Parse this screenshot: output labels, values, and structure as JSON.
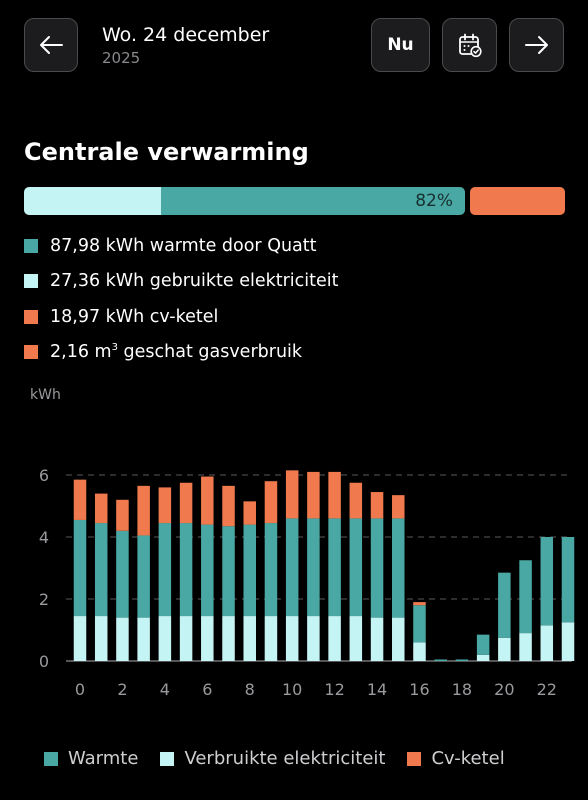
{
  "header": {
    "date": "Wo. 24 december",
    "year": "2025",
    "now_label": "Nu",
    "back_icon": "arrow-left-icon",
    "forward_icon": "arrow-right-icon",
    "calendar_icon": "calendar-check-icon"
  },
  "section": {
    "title": "Centrale verwarming",
    "percent_label": "82%"
  },
  "progress": {
    "electricity_fraction": 0.31,
    "heat_fraction": 0.69,
    "total_percent": 82
  },
  "legend": [
    {
      "text": "87,98 kWh warmte door Quatt",
      "color": "#4aa8a4"
    },
    {
      "text": "27,36 kWh gebruikte elektriciteit",
      "color": "#c5f4f4"
    },
    {
      "text": "18,97 kWh cv-ketel",
      "color": "#f07a4d"
    },
    {
      "pre": "2,16 m",
      "sup": "3",
      "post": " geschat gasverbruik",
      "color": "#f07a4d"
    }
  ],
  "colors": {
    "heat": "#4aa8a4",
    "electricity": "#c5f4f4",
    "boiler": "#f07a4d"
  },
  "chart_data": {
    "type": "bar",
    "stacked": true,
    "ylabel": "kWh",
    "ylim": [
      0,
      6.3
    ],
    "yticks": [
      0,
      2,
      4,
      6
    ],
    "xticks": [
      0,
      2,
      4,
      6,
      8,
      10,
      12,
      14,
      16,
      18,
      20,
      22
    ],
    "x": [
      0,
      1,
      2,
      3,
      4,
      5,
      6,
      7,
      8,
      9,
      10,
      11,
      12,
      13,
      14,
      15,
      16,
      17,
      18,
      19,
      20,
      21,
      22,
      23
    ],
    "series": [
      {
        "name": "Verbruikte elektriciteit",
        "color": "#c5f4f4",
        "values": [
          1.45,
          1.45,
          1.4,
          1.4,
          1.45,
          1.45,
          1.45,
          1.45,
          1.45,
          1.45,
          1.45,
          1.45,
          1.45,
          1.45,
          1.4,
          1.4,
          0.6,
          0,
          0,
          0.2,
          0.75,
          0.9,
          1.15,
          1.25
        ]
      },
      {
        "name": "Warmte",
        "color": "#4aa8a4",
        "values": [
          3.1,
          3.0,
          2.8,
          2.65,
          3.0,
          3.0,
          2.95,
          2.9,
          2.95,
          3.0,
          3.15,
          3.15,
          3.15,
          3.15,
          3.2,
          3.2,
          1.2,
          0.05,
          0.05,
          0.65,
          2.1,
          2.35,
          2.85,
          2.75
        ]
      },
      {
        "name": "Cv-ketel",
        "color": "#f07a4d",
        "values": [
          1.3,
          0.95,
          1.0,
          1.6,
          1.15,
          1.3,
          1.55,
          1.3,
          0.75,
          1.35,
          1.55,
          1.5,
          1.5,
          1.15,
          0.85,
          0.75,
          0.1,
          0,
          0,
          0,
          0,
          0,
          0,
          0
        ]
      }
    ]
  },
  "bottom_legend": [
    {
      "label": "Warmte",
      "color": "#4aa8a4"
    },
    {
      "label": "Verbruikte elektriciteit",
      "color": "#c5f4f4"
    },
    {
      "label": "Cv-ketel",
      "color": "#f07a4d"
    }
  ]
}
